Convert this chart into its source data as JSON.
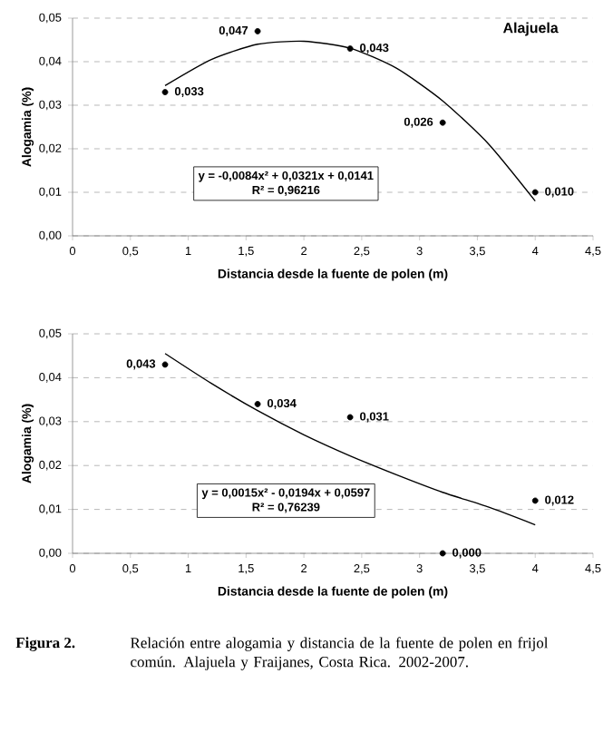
{
  "chart_data": [
    {
      "type": "scatter",
      "title": "Alajuela",
      "xlabel": "Distancia desde la fuente de polen (m)",
      "ylabel": "Alogamia (%)",
      "xlim": [
        0,
        4.5
      ],
      "ylim": [
        0,
        0.05
      ],
      "xticks": [
        0,
        {
          "value": 0.5,
          "label": "0,5"
        },
        1,
        {
          "value": 1.5,
          "label": "1,5"
        },
        2,
        {
          "value": 2.5,
          "label": "2,5"
        },
        3,
        {
          "value": 3.5,
          "label": "3,5"
        },
        4,
        {
          "value": 4.5,
          "label": "4,5"
        }
      ],
      "yticks": [
        {
          "value": 0,
          "label": "0,00"
        },
        {
          "value": 0.01,
          "label": "0,01"
        },
        {
          "value": 0.02,
          "label": "0,02"
        },
        {
          "value": 0.03,
          "label": "0,03"
        },
        {
          "value": 0.04,
          "label": "0,04"
        },
        {
          "value": 0.05,
          "label": "0,05"
        }
      ],
      "grid": "y",
      "series": [
        {
          "type": "scatter",
          "marker": "circle",
          "color": "#000000",
          "x": [
            0.8,
            1.6,
            2.4,
            3.2,
            4.0
          ],
          "values": [
            0.033,
            0.047,
            0.043,
            0.026,
            0.01
          ],
          "value_labels": [
            "0,033",
            "0,047",
            "0,043",
            "0,026",
            "0,010"
          ]
        },
        {
          "type": "line",
          "marker": "none",
          "color": "#000000",
          "x": [
            0.8,
            1.2,
            1.6,
            2.0,
            2.4,
            2.8,
            3.2,
            3.6,
            4.0
          ],
          "values": [
            0.0345,
            0.0405,
            0.044,
            0.0447,
            0.0431,
            0.0385,
            0.031,
            0.021,
            0.008
          ]
        }
      ],
      "annotations": [
        "y = -0,0084x² + 0,0321x + 0,0141",
        "R² = 0,96216"
      ]
    },
    {
      "type": "scatter",
      "xlabel": "Distancia desde la fuente de polen (m)",
      "ylabel": "Alogamia (%)",
      "xlim": [
        0,
        4.5
      ],
      "ylim": [
        0,
        0.05
      ],
      "xticks": [
        0,
        {
          "value": 0.5,
          "label": "0,5"
        },
        1,
        {
          "value": 1.5,
          "label": "1,5"
        },
        2,
        {
          "value": 2.5,
          "label": "2,5"
        },
        3,
        {
          "value": 3.5,
          "label": "3,5"
        },
        4,
        {
          "value": 4.5,
          "label": "4,5"
        }
      ],
      "yticks": [
        {
          "value": 0,
          "label": "0,00"
        },
        {
          "value": 0.01,
          "label": "0,01"
        },
        {
          "value": 0.02,
          "label": "0,02"
        },
        {
          "value": 0.03,
          "label": "0,03"
        },
        {
          "value": 0.04,
          "label": "0,04"
        },
        {
          "value": 0.05,
          "label": "0,05"
        }
      ],
      "grid": "y",
      "series": [
        {
          "type": "scatter",
          "marker": "circle",
          "color": "#000000",
          "x": [
            0.8,
            1.6,
            2.4,
            3.2,
            4.0
          ],
          "values": [
            0.043,
            0.034,
            0.031,
            0.0,
            0.012
          ],
          "value_labels": [
            "0,043",
            "0,034",
            "0,031",
            "0,000",
            "0,012"
          ]
        },
        {
          "type": "line",
          "marker": "none",
          "color": "#000000",
          "x": [
            0.8,
            1.2,
            1.6,
            2.0,
            2.4,
            2.8,
            3.2,
            3.6,
            4.0
          ],
          "values": [
            0.0455,
            0.0387,
            0.0325,
            0.027,
            0.0222,
            0.0179,
            0.0139,
            0.0105,
            0.0065
          ]
        }
      ],
      "annotations": [
        "y = 0,0015x² - 0,0194x + 0,0597",
        "R² = 0,76239",
        "Figura 2.",
        "Relación entre alogamia y distancia de la fuente de polen en frijol común. Alajuela y Fraijanes, Costa Rica. 2002-2007."
      ]
    }
  ]
}
